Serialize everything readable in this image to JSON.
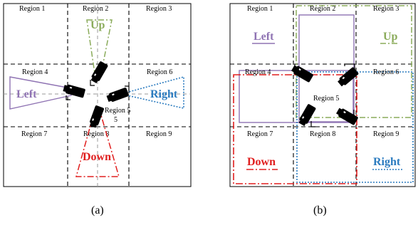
{
  "panels": [
    {
      "caption": "(a)",
      "regions": [
        "Region 1",
        "Region 2",
        "Region 3",
        "Region 4",
        "Region 5",
        "Region 6",
        "Region 7",
        "Region 8",
        "Region 9"
      ],
      "region5_sub": "5",
      "directions": {
        "up": "Up",
        "left": "Left",
        "right": "Right",
        "down": "Down"
      }
    },
    {
      "caption": "(b)",
      "regions": [
        "Region 1",
        "Region 2",
        "Region 3",
        "Region 4",
        "Region 5",
        "Region 6",
        "Region 7",
        "Region 8",
        "Region 9"
      ],
      "directions": {
        "up": "Up",
        "left": "Left",
        "right": "Right",
        "down": "Down"
      }
    }
  ],
  "colors": {
    "up": "#8aab5a",
    "left": "#8f73b3",
    "right": "#2b7bbf",
    "down": "#e01e1e",
    "grid": "#000000",
    "camera": "#000000"
  },
  "icons": [
    "camera-icon"
  ]
}
